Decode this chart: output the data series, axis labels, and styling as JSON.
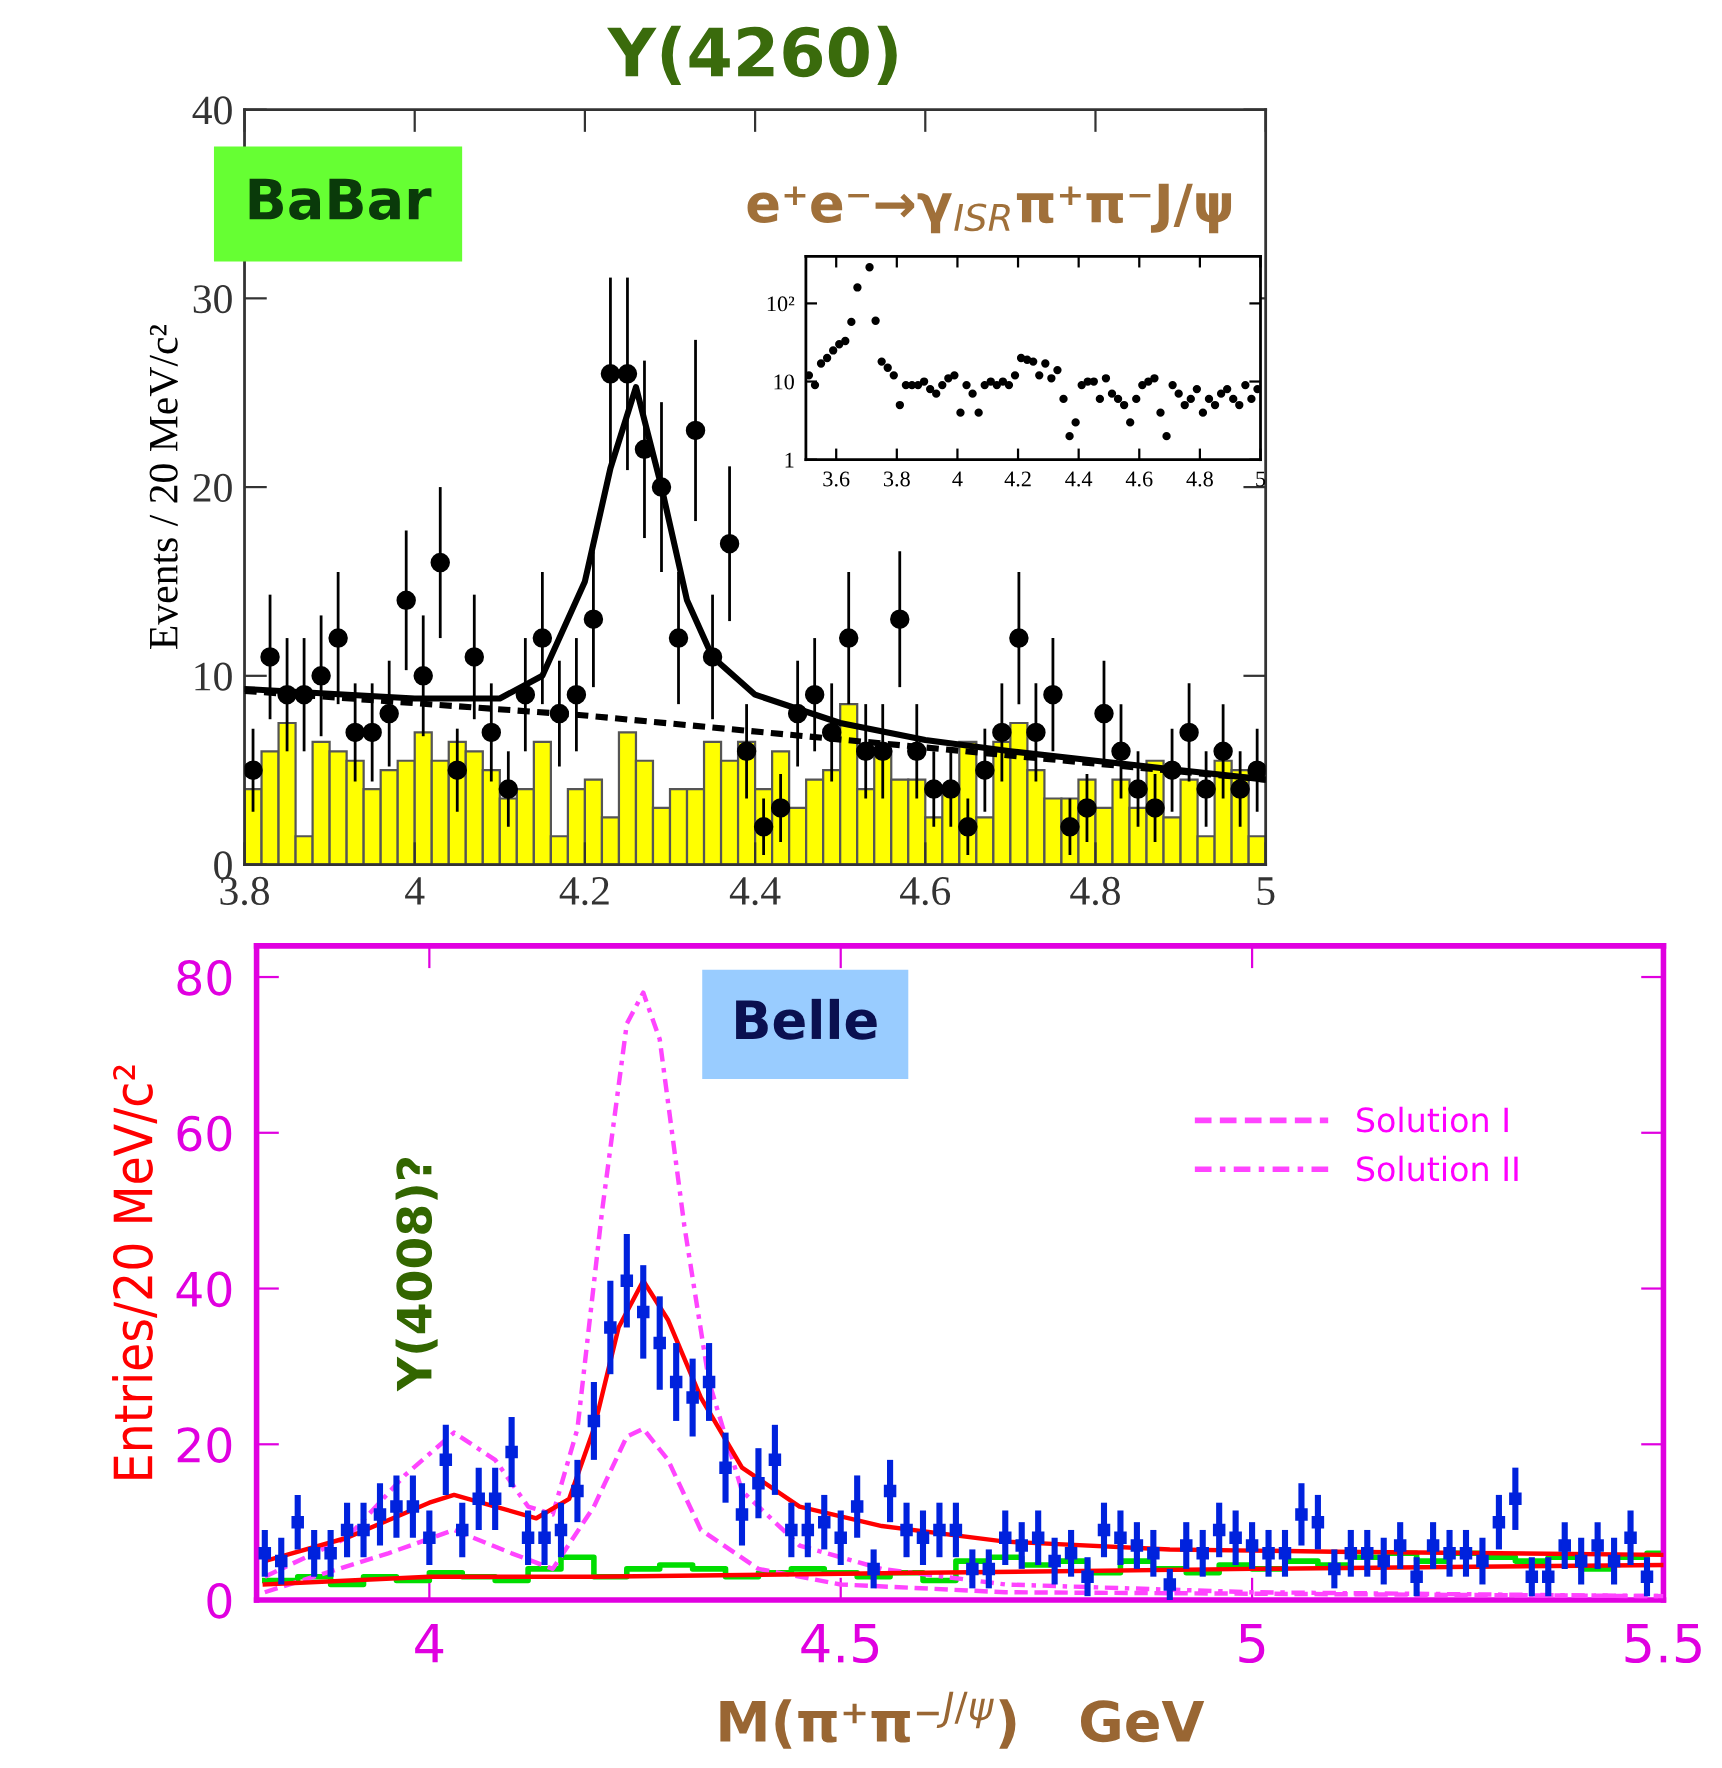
{
  "chart_data": [
    {
      "type": "scatter",
      "title": "Y(4260)",
      "ylabel": "Events / 20 MeV/c²",
      "xlim": [
        3.8,
        5.0
      ],
      "ylim": [
        0,
        40
      ],
      "xticks": [
        3.8,
        4,
        4.2,
        4.4,
        4.6,
        4.8,
        5
      ],
      "yticks": [
        0,
        10,
        20,
        30,
        40
      ],
      "grid": false,
      "annotations": [
        "BaBar",
        "e⁺e⁻→γ$_{ISR}$π⁺π⁻J/ψ"
      ],
      "series": [
        {
          "type": "bar",
          "color": "#ffff00",
          "x": [
            3.81,
            3.83,
            3.85,
            3.87,
            3.89,
            3.91,
            3.93,
            3.95,
            3.97,
            3.99,
            4.01,
            4.03,
            4.05,
            4.07,
            4.09,
            4.11,
            4.13,
            4.15,
            4.17,
            4.19,
            4.21,
            4.23,
            4.25,
            4.27,
            4.29,
            4.31,
            4.33,
            4.35,
            4.37,
            4.39,
            4.41,
            4.43,
            4.45,
            4.47,
            4.49,
            4.51,
            4.53,
            4.55,
            4.57,
            4.59,
            4.61,
            4.63,
            4.65,
            4.67,
            4.69,
            4.71,
            4.73,
            4.75,
            4.77,
            4.79,
            4.81,
            4.83,
            4.85,
            4.87,
            4.89,
            4.91,
            4.93,
            4.95,
            4.97,
            4.99
          ],
          "values": [
            4,
            6,
            7.5,
            1.5,
            6.5,
            6,
            5.5,
            4,
            5,
            5.5,
            7,
            5.5,
            6.5,
            6,
            5,
            3.5,
            4,
            6.5,
            1.5,
            4,
            4.5,
            2.5,
            7,
            5.5,
            3,
            4,
            4,
            6.5,
            5.5,
            6.5,
            4,
            6,
            3,
            4.5,
            5,
            8.5,
            4,
            6,
            4.5,
            4.5,
            2.5,
            4,
            6.5,
            2.5,
            6.5,
            7.5,
            5,
            3.5,
            3.5,
            4.5,
            3,
            4.5,
            3,
            5.5,
            2.5,
            4.5,
            1.5,
            5.5,
            5,
            1.5
          ]
        },
        {
          "type": "line",
          "color": "#000000",
          "line_style": "dotted",
          "x": [
            3.8,
            4.2,
            4.6,
            5.0
          ],
          "values": [
            9.2,
            7.9,
            6.2,
            4.5
          ]
        },
        {
          "type": "line",
          "color": "#000000",
          "line_style": "solid",
          "x": [
            3.8,
            4.0,
            4.1,
            4.15,
            4.2,
            4.23,
            4.26,
            4.29,
            4.32,
            4.35,
            4.4,
            4.5,
            4.6,
            4.7,
            4.8,
            4.9,
            5.0
          ],
          "values": [
            9.3,
            8.8,
            8.8,
            10,
            15,
            21,
            25.3,
            20,
            14,
            11,
            9,
            7.5,
            6.6,
            6,
            5.5,
            5,
            4.5
          ]
        },
        {
          "type": "scatter",
          "color": "#000000",
          "marker": "circle",
          "x": [
            3.81,
            3.83,
            3.85,
            3.87,
            3.89,
            3.91,
            3.93,
            3.95,
            3.97,
            3.99,
            4.01,
            4.03,
            4.05,
            4.07,
            4.09,
            4.11,
            4.13,
            4.15,
            4.17,
            4.19,
            4.21,
            4.23,
            4.25,
            4.27,
            4.29,
            4.31,
            4.33,
            4.35,
            4.37,
            4.39,
            4.41,
            4.43,
            4.45,
            4.47,
            4.49,
            4.51,
            4.53,
            4.55,
            4.57,
            4.59,
            4.61,
            4.63,
            4.65,
            4.67,
            4.69,
            4.71,
            4.73,
            4.75,
            4.77,
            4.79,
            4.81,
            4.83,
            4.85,
            4.87,
            4.89,
            4.91,
            4.93,
            4.95,
            4.97,
            4.99
          ],
          "values": [
            5,
            11,
            9,
            9,
            10,
            12,
            7,
            7,
            8,
            14,
            10,
            16,
            5,
            11,
            7,
            4,
            9,
            12,
            8,
            9,
            13,
            26,
            26,
            22,
            20,
            12,
            23,
            11,
            17,
            6,
            2,
            3,
            8,
            9,
            7,
            12,
            6,
            6,
            13,
            6,
            4,
            4,
            2,
            5,
            7,
            12,
            7,
            9,
            2,
            3,
            8,
            6,
            4,
            3,
            5,
            7,
            4,
            6,
            4,
            5
          ],
          "errors": [
            2.2,
            3.3,
            3,
            3,
            3.2,
            3.5,
            2.6,
            2.6,
            2.8,
            3.7,
            3.2,
            4,
            2.2,
            3.3,
            2.6,
            2,
            3,
            3.5,
            2.8,
            3,
            3.6,
            5.1,
            5.1,
            4.7,
            4.5,
            3.5,
            4.8,
            3.3,
            4.1,
            2.5,
            1.5,
            1.8,
            2.8,
            3,
            2.6,
            3.5,
            2.5,
            2.5,
            3.6,
            2.5,
            2,
            2,
            1.5,
            2.2,
            2.6,
            3.5,
            2.6,
            3,
            1.5,
            1.8,
            2.8,
            2.5,
            2,
            1.8,
            2.2,
            2.6,
            2,
            2.5,
            2,
            2.2
          ]
        }
      ]
    },
    {
      "type": "scatter",
      "log": "y",
      "xlim": [
        3.5,
        5.0
      ],
      "ylim": [
        1,
        400
      ],
      "xticks": [
        3.6,
        3.8,
        4,
        4.2,
        4.4,
        4.6,
        4.8,
        5
      ],
      "yticks": [
        1,
        10,
        {
          "value": 100,
          "label": "10²"
        }
      ],
      "grid": false,
      "series": [
        {
          "color": "#000000",
          "marker": "circle",
          "x": [
            3.51,
            3.53,
            3.55,
            3.57,
            3.59,
            3.61,
            3.63,
            3.65,
            3.67,
            3.71,
            3.73,
            3.75,
            3.77,
            3.79,
            3.81,
            3.83,
            3.85,
            3.87,
            3.89,
            3.91,
            3.93,
            3.95,
            3.97,
            3.99,
            4.01,
            4.03,
            4.05,
            4.07,
            4.09,
            4.11,
            4.13,
            4.15,
            4.17,
            4.19,
            4.21,
            4.23,
            4.25,
            4.27,
            4.29,
            4.31,
            4.33,
            4.35,
            4.37,
            4.39,
            4.41,
            4.43,
            4.45,
            4.47,
            4.49,
            4.51,
            4.53,
            4.55,
            4.57,
            4.59,
            4.61,
            4.63,
            4.65,
            4.67,
            4.69,
            4.71,
            4.73,
            4.75,
            4.77,
            4.79,
            4.81,
            4.83,
            4.85,
            4.87,
            4.89,
            4.91,
            4.93,
            4.95,
            4.97,
            4.99
          ],
          "values": [
            12,
            9,
            17,
            20,
            25,
            30,
            33,
            58,
            160,
            290,
            60,
            18,
            15,
            12,
            5,
            9,
            9,
            9,
            10,
            8,
            7,
            9,
            11,
            12,
            4,
            9,
            7,
            4,
            9,
            10,
            9,
            10,
            9,
            12,
            20,
            19,
            18,
            12,
            17,
            11,
            14,
            6,
            2,
            3,
            9,
            10,
            10,
            6,
            11,
            7,
            6,
            5,
            3,
            6,
            9,
            10,
            11,
            4,
            2,
            9,
            7,
            5,
            6,
            8,
            4,
            6,
            5,
            7,
            8,
            6,
            5,
            9,
            6,
            8
          ]
        }
      ]
    },
    {
      "type": "scatter",
      "xlabel": "M(π⁺π⁻$^{J/ψ}$)   GeV",
      "ylabel": "Entries/20 MeV/c²",
      "xlim": [
        3.79,
        5.5
      ],
      "ylim": [
        0,
        84
      ],
      "xticks": [
        4,
        4.5,
        5,
        5.5
      ],
      "yticks": [
        0,
        20,
        40,
        60,
        80
      ],
      "grid": false,
      "legend": "top right",
      "annotations": [
        "Belle",
        "Y(4008)?"
      ],
      "series": [
        {
          "type": "step",
          "color": "#00dd00",
          "x": [
            3.8,
            3.84,
            3.88,
            3.92,
            3.96,
            4.0,
            4.04,
            4.08,
            4.12,
            4.16,
            4.2,
            4.24,
            4.28,
            4.32,
            4.36,
            4.4,
            4.44,
            4.48,
            4.52,
            4.56,
            4.6,
            4.64,
            4.68,
            4.72,
            4.76,
            4.8,
            4.84,
            4.88,
            4.92,
            4.96,
            5.0,
            5.04,
            5.08,
            5.12,
            5.16,
            5.2,
            5.24,
            5.28,
            5.32,
            5.36,
            5.4,
            5.44,
            5.48,
            5.5
          ],
          "values": [
            2.5,
            3,
            2,
            3,
            2.5,
            3.5,
            3,
            2.5,
            4,
            5.5,
            3,
            4,
            4.5,
            4,
            3,
            3.5,
            4,
            3.5,
            3,
            3.5,
            2.5,
            5,
            5.5,
            4.5,
            5,
            3.5,
            5,
            4,
            3.5,
            4.5,
            4,
            5,
            4.5,
            5.5,
            6,
            5,
            6,
            5.5,
            5,
            5.5,
            4,
            5.5,
            6,
            6
          ]
        },
        {
          "type": "line",
          "name": "Solution I",
          "color": "#ff44ff",
          "line_style": "dashed",
          "x": [
            3.8,
            3.95,
            4.03,
            4.1,
            4.15,
            4.2,
            4.24,
            4.26,
            4.29,
            4.33,
            4.4,
            4.5,
            4.7,
            5.5
          ],
          "values": [
            1,
            6,
            9,
            6,
            4,
            12,
            21,
            22,
            18,
            9,
            4,
            2,
            1,
            0.5
          ]
        },
        {
          "type": "line",
          "name": "Solution II",
          "color": "#ff44ff",
          "line_style": "dashdot",
          "x": [
            3.8,
            3.9,
            3.97,
            4.03,
            4.08,
            4.12,
            4.15,
            4.18,
            4.21,
            4.24,
            4.26,
            4.28,
            4.31,
            4.34,
            4.38,
            4.45,
            4.55,
            4.7,
            5.0,
            5.5
          ],
          "values": [
            3,
            8,
            16,
            21.5,
            18,
            12,
            11,
            22,
            50,
            74,
            78,
            72,
            48,
            28,
            14,
            7,
            4,
            2,
            1,
            0.5
          ]
        },
        {
          "type": "line",
          "color": "#ff0000",
          "line_style": "solid",
          "x": [
            3.8,
            4.0,
            4.2,
            4.6,
            5.0,
            5.5
          ],
          "values": [
            2,
            3,
            3,
            3.5,
            4,
            4.5
          ]
        },
        {
          "type": "line",
          "color": "#ff0000",
          "line_style": "solid",
          "x": [
            3.8,
            3.9,
            4.0,
            4.03,
            4.08,
            4.13,
            4.17,
            4.2,
            4.23,
            4.26,
            4.29,
            4.33,
            4.38,
            4.45,
            4.55,
            4.7,
            4.9,
            5.1,
            5.3,
            5.5
          ],
          "values": [
            5,
            8,
            12.5,
            13.5,
            12,
            10.5,
            13,
            22,
            35,
            41,
            36,
            26,
            17,
            12,
            9.5,
            7.5,
            6.5,
            6.2,
            6,
            5.8
          ]
        },
        {
          "type": "scatter",
          "color": "#0022dd",
          "marker": "square",
          "x": [
            3.8,
            3.82,
            3.84,
            3.86,
            3.88,
            3.9,
            3.92,
            3.94,
            3.96,
            3.98,
            4.0,
            4.02,
            4.04,
            4.06,
            4.08,
            4.1,
            4.12,
            4.14,
            4.16,
            4.18,
            4.2,
            4.22,
            4.24,
            4.26,
            4.28,
            4.3,
            4.32,
            4.34,
            4.36,
            4.38,
            4.4,
            4.42,
            4.44,
            4.46,
            4.48,
            4.5,
            4.52,
            4.54,
            4.56,
            4.58,
            4.6,
            4.62,
            4.64,
            4.66,
            4.68,
            4.7,
            4.72,
            4.74,
            4.76,
            4.78,
            4.8,
            4.82,
            4.84,
            4.86,
            4.88,
            4.9,
            4.92,
            4.94,
            4.96,
            4.98,
            5.0,
            5.02,
            5.04,
            5.06,
            5.08,
            5.1,
            5.12,
            5.14,
            5.16,
            5.18,
            5.2,
            5.22,
            5.24,
            5.26,
            5.28,
            5.3,
            5.32,
            5.34,
            5.36,
            5.38,
            5.4,
            5.42,
            5.44,
            5.46,
            5.48
          ],
          "values": [
            6,
            5,
            10,
            6,
            6,
            9,
            9,
            11,
            12,
            12,
            8,
            18,
            9,
            13,
            13,
            19,
            8,
            8,
            9,
            14,
            23,
            35,
            41,
            37,
            33,
            28,
            26,
            28,
            17,
            11,
            15,
            18,
            9,
            9,
            10,
            8,
            12,
            4,
            14,
            9,
            8,
            9,
            9,
            4,
            4,
            8,
            7,
            8,
            5,
            6,
            3,
            9,
            8,
            7,
            6,
            2,
            7,
            6,
            9,
            8,
            7,
            6,
            6,
            11,
            10,
            4,
            6,
            6,
            5,
            7,
            3,
            7,
            6,
            6,
            5,
            10,
            13,
            3,
            3,
            7,
            5,
            7,
            5,
            8,
            3
          ],
          "errors": [
            3,
            3,
            3.5,
            3,
            3,
            3.5,
            3.5,
            4,
            4,
            4,
            3.5,
            4.5,
            3.5,
            4,
            4,
            4.5,
            3.5,
            3.5,
            3.5,
            4,
            5,
            6,
            6,
            6,
            6,
            5,
            5,
            5,
            4.5,
            4,
            4.5,
            4.5,
            3.5,
            3.5,
            3.5,
            3.5,
            4,
            2.5,
            4,
            3.5,
            3.5,
            3.5,
            3.5,
            2.5,
            2.5,
            3.5,
            3,
            3.5,
            3,
            3,
            2.5,
            3.5,
            3.5,
            3,
            3,
            2,
            3,
            3,
            3.5,
            3.5,
            3,
            3,
            3,
            4,
            3.5,
            2.5,
            3,
            3,
            3,
            3,
            2.5,
            3,
            3,
            3,
            3,
            3.5,
            4,
            2.5,
            2.5,
            3,
            3,
            3,
            3,
            3.5,
            2.5
          ]
        }
      ]
    }
  ]
}
